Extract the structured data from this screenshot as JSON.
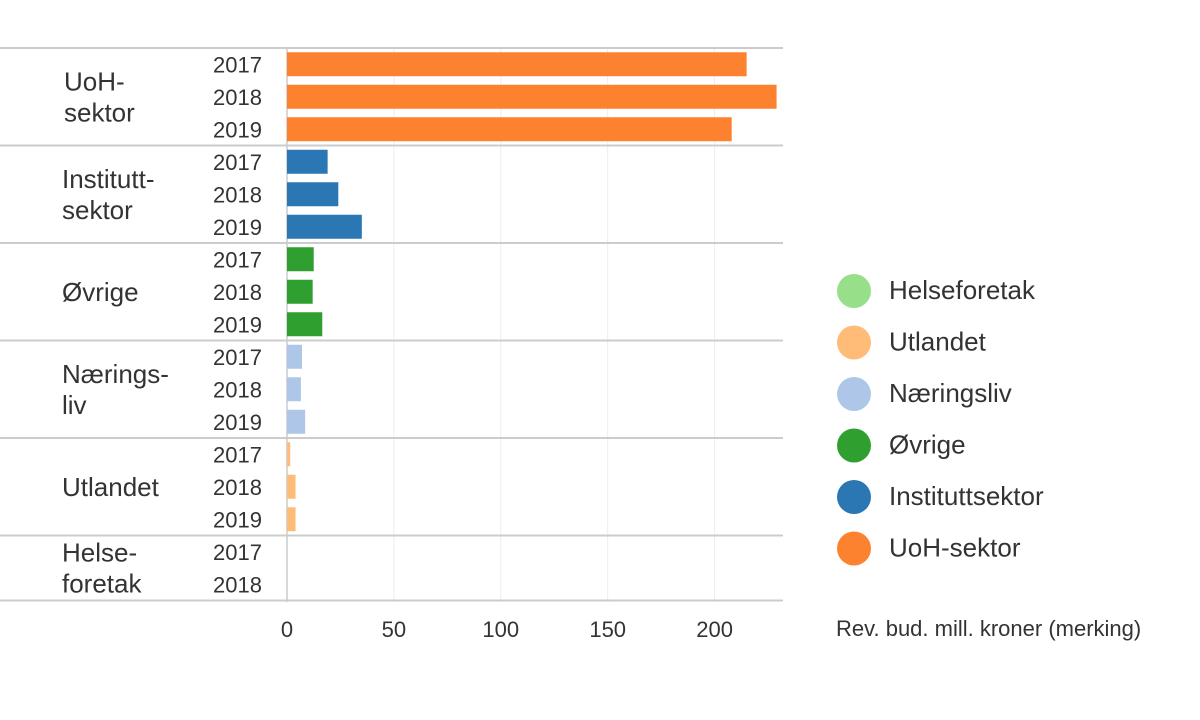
{
  "chart_data": {
    "type": "bar",
    "orientation": "horizontal",
    "groups": [
      {
        "name": "UoH-sektor",
        "label_lines": [
          "UoH-",
          "sektor"
        ],
        "color": "#fd8230",
        "bars": [
          {
            "year": "2017",
            "value": 215
          },
          {
            "year": "2018",
            "value": 229
          },
          {
            "year": "2019",
            "value": 208
          }
        ]
      },
      {
        "name": "Instituttsektor",
        "label_lines": [
          "Institutt-",
          "sektor"
        ],
        "color": "#2a77b4",
        "bars": [
          {
            "year": "2017",
            "value": 19
          },
          {
            "year": "2018",
            "value": 24
          },
          {
            "year": "2019",
            "value": 35
          }
        ]
      },
      {
        "name": "Øvrige",
        "label_lines": [
          "Øvrige"
        ],
        "color": "#2fa02f",
        "bars": [
          {
            "year": "2017",
            "value": 12.5
          },
          {
            "year": "2018",
            "value": 12
          },
          {
            "year": "2019",
            "value": 16.5
          }
        ]
      },
      {
        "name": "Næringsliv",
        "label_lines": [
          "Nærings-",
          "liv"
        ],
        "color": "#aec7e8",
        "bars": [
          {
            "year": "2017",
            "value": 7
          },
          {
            "year": "2018",
            "value": 6.5
          },
          {
            "year": "2019",
            "value": 8.5
          }
        ]
      },
      {
        "name": "Utlandet",
        "label_lines": [
          "Utlandet"
        ],
        "color": "#ffbb78",
        "bars": [
          {
            "year": "2017",
            "value": 1.5
          },
          {
            "year": "2018",
            "value": 4
          },
          {
            "year": "2019",
            "value": 4
          }
        ]
      },
      {
        "name": "Helseforetak",
        "label_lines": [
          "Helse-",
          "foretak"
        ],
        "color": "#98df8a",
        "bars": [
          {
            "year": "2017",
            "value": 0
          },
          {
            "year": "2018",
            "value": 0
          }
        ]
      }
    ],
    "x_ticks": [
      0,
      50,
      100,
      150,
      200
    ],
    "xlim": [
      0,
      232
    ],
    "grid": true,
    "legend": {
      "placement": "right",
      "items": [
        {
          "label": "Helseforetak",
          "color": "#98df8a"
        },
        {
          "label": "Utlandet",
          "color": "#ffbb78"
        },
        {
          "label": "Næringsliv",
          "color": "#aec7e8"
        },
        {
          "label": "Øvrige",
          "color": "#2fa02f"
        },
        {
          "label": "Instituttsektor",
          "color": "#2a77b4"
        },
        {
          "label": "UoH-sektor",
          "color": "#fd8230"
        }
      ],
      "title": "Rev. bud. mill. kroner (merking)"
    }
  }
}
